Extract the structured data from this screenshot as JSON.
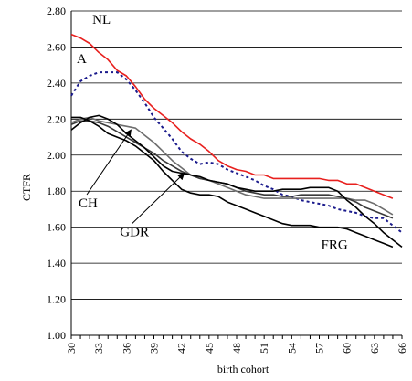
{
  "chart_data": {
    "type": "line",
    "title": "",
    "xlabel": "birth cohort",
    "ylabel": "CTFR",
    "ylim": [
      1.0,
      2.8
    ],
    "y_ticks": [
      "1.00",
      "1.20",
      "1.40",
      "1.60",
      "1.80",
      "2.00",
      "2.20",
      "2.40",
      "2.60",
      "2.80"
    ],
    "x_ticks": [
      "30",
      "33",
      "36",
      "39",
      "42",
      "45",
      "48",
      "51",
      "54",
      "57",
      "60",
      "63",
      "66"
    ],
    "x": [
      30,
      31,
      32,
      33,
      34,
      35,
      36,
      37,
      38,
      39,
      40,
      41,
      42,
      43,
      44,
      45,
      46,
      47,
      48,
      49,
      50,
      51,
      52,
      53,
      54,
      55,
      56,
      57,
      58,
      59,
      60,
      61,
      62,
      63,
      64,
      65,
      66
    ],
    "grid": "horizontal",
    "legend": "none",
    "series": [
      {
        "name": "NL",
        "color": "#e8201e",
        "dash": "solid",
        "values": [
          2.67,
          2.65,
          2.62,
          2.57,
          2.53,
          2.47,
          2.44,
          2.38,
          2.31,
          2.26,
          2.22,
          2.18,
          2.13,
          2.09,
          2.06,
          2.02,
          1.97,
          1.94,
          1.92,
          1.91,
          1.89,
          1.89,
          1.87,
          1.87,
          1.87,
          1.87,
          1.87,
          1.87,
          1.86,
          1.86,
          1.84,
          1.84,
          1.82,
          1.8,
          1.78,
          1.76,
          null
        ]
      },
      {
        "name": "A",
        "color": "#1a1a8c",
        "dash": "dotted",
        "values": [
          2.33,
          2.41,
          2.44,
          2.46,
          2.46,
          2.46,
          2.42,
          2.36,
          2.29,
          2.21,
          2.15,
          2.09,
          2.02,
          1.98,
          1.95,
          1.96,
          1.95,
          1.92,
          1.9,
          1.88,
          1.86,
          1.83,
          1.81,
          1.78,
          1.77,
          1.75,
          1.74,
          1.73,
          1.72,
          1.7,
          1.69,
          1.68,
          1.66,
          1.65,
          1.65,
          1.61,
          1.57
        ]
      },
      {
        "name": "",
        "color": "#6e6e6e",
        "dash": "solid",
        "values": [
          2.18,
          2.2,
          2.21,
          2.19,
          2.18,
          2.17,
          2.16,
          2.15,
          2.11,
          2.07,
          2.02,
          1.97,
          1.93,
          1.89,
          1.87,
          1.86,
          1.84,
          1.82,
          1.8,
          1.78,
          1.77,
          1.76,
          1.76,
          1.76,
          1.76,
          1.76,
          1.76,
          1.76,
          1.76,
          1.76,
          1.76,
          1.75,
          1.75,
          1.73,
          1.7,
          1.67,
          null
        ]
      },
      {
        "name": "CH",
        "color": "#3a3a3a",
        "dash": "solid",
        "values": [
          2.17,
          2.19,
          2.19,
          2.18,
          2.16,
          2.13,
          2.1,
          2.07,
          2.04,
          2.01,
          1.97,
          1.94,
          1.91,
          1.89,
          1.87,
          1.86,
          1.85,
          1.84,
          1.82,
          1.8,
          1.79,
          1.78,
          1.78,
          1.77,
          1.77,
          1.78,
          1.78,
          1.78,
          1.78,
          1.77,
          1.76,
          1.74,
          1.71,
          1.69,
          1.67,
          1.65,
          null
        ]
      },
      {
        "name": "GDR",
        "color": "#000000",
        "dash": "solid",
        "values": [
          2.14,
          2.18,
          2.21,
          2.22,
          2.2,
          2.17,
          2.12,
          2.08,
          2.04,
          1.99,
          1.94,
          1.91,
          1.9,
          1.89,
          1.88,
          1.86,
          1.85,
          1.84,
          1.82,
          1.81,
          1.8,
          1.8,
          1.8,
          1.81,
          1.81,
          1.81,
          1.82,
          1.82,
          1.82,
          1.8,
          1.75,
          1.71,
          1.66,
          1.62,
          1.57,
          1.53,
          1.49
        ]
      },
      {
        "name": "FRG",
        "color": "#000000",
        "dash": "solid",
        "values": [
          2.21,
          2.21,
          2.19,
          2.16,
          2.12,
          2.1,
          2.08,
          2.05,
          2.01,
          1.97,
          1.91,
          1.86,
          1.81,
          1.79,
          1.78,
          1.78,
          1.77,
          1.74,
          1.72,
          1.7,
          1.68,
          1.66,
          1.64,
          1.62,
          1.61,
          1.61,
          1.61,
          1.6,
          1.6,
          1.6,
          1.59,
          1.57,
          1.55,
          1.53,
          1.51,
          1.49,
          null
        ]
      }
    ],
    "annotations": [
      {
        "text": "NL",
        "x": 32.3,
        "y": 2.73
      },
      {
        "text": "A",
        "x": 30.6,
        "y": 2.51
      },
      {
        "text": "CH",
        "x": 30.8,
        "y": 1.71,
        "arrow_to": [
          36.5,
          2.14
        ]
      },
      {
        "text": "GDR",
        "x": 35.3,
        "y": 1.55,
        "arrow_to": [
          42.3,
          1.9
        ]
      },
      {
        "text": "FRG",
        "x": 57.2,
        "y": 1.48
      }
    ]
  }
}
